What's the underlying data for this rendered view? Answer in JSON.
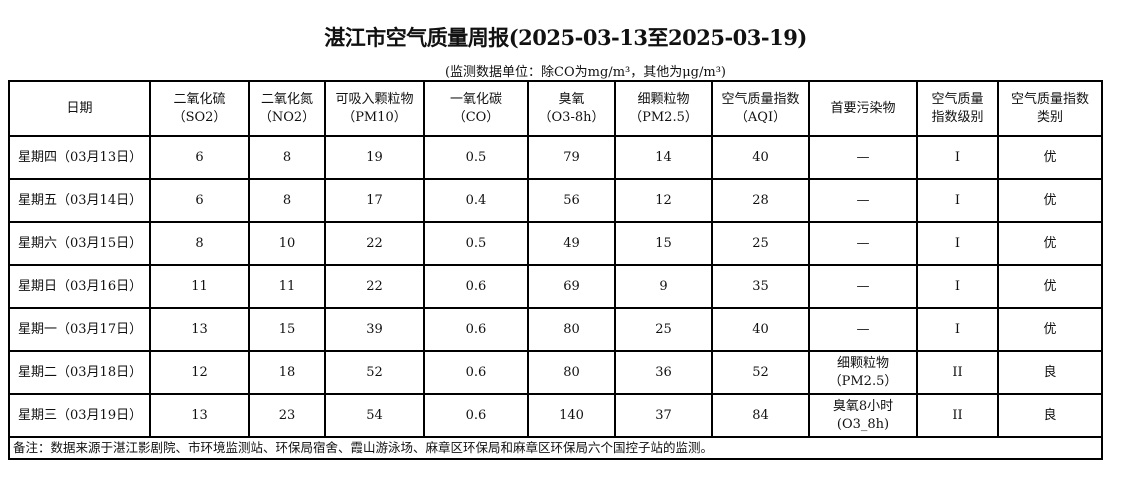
{
  "title": "湛江市空气质量周报(2025-03-13至2025-03-19)",
  "unit_note": "(监测数据单位：除CO为mg/m³，其他为μg/m³)",
  "headers": [
    {
      "l1": "日期",
      "l2": ""
    },
    {
      "l1": "二氧化硫",
      "l2": "（SO2）"
    },
    {
      "l1": "二氧化氮",
      "l2": "（NO2）"
    },
    {
      "l1": "可吸入颗粒物",
      "l2": "（PM10）"
    },
    {
      "l1": "一氧化碳",
      "l2": "（CO）"
    },
    {
      "l1": "臭氧",
      "l2": "（O3-8h）"
    },
    {
      "l1": "细颗粒物",
      "l2": "（PM2.5）"
    },
    {
      "l1": "空气质量指数",
      "l2": "（AQI）"
    },
    {
      "l1": "首要污染物",
      "l2": ""
    },
    {
      "l1": "空气质量",
      "l2": "指数级别"
    },
    {
      "l1": "空气质量指数",
      "l2": "类别"
    }
  ],
  "rows": [
    {
      "date": "星期四（03月13日）",
      "so2": "6",
      "no2": "8",
      "pm10": "19",
      "co": "0.5",
      "o3": "79",
      "pm25": "14",
      "aqi": "40",
      "p1": "—",
      "p2": "",
      "level": "I",
      "cat": "优"
    },
    {
      "date": "星期五（03月14日）",
      "so2": "6",
      "no2": "8",
      "pm10": "17",
      "co": "0.4",
      "o3": "56",
      "pm25": "12",
      "aqi": "28",
      "p1": "—",
      "p2": "",
      "level": "I",
      "cat": "优"
    },
    {
      "date": "星期六（03月15日）",
      "so2": "8",
      "no2": "10",
      "pm10": "22",
      "co": "0.5",
      "o3": "49",
      "pm25": "15",
      "aqi": "25",
      "p1": "—",
      "p2": "",
      "level": "I",
      "cat": "优"
    },
    {
      "date": "星期日（03月16日）",
      "so2": "11",
      "no2": "11",
      "pm10": "22",
      "co": "0.6",
      "o3": "69",
      "pm25": "9",
      "aqi": "35",
      "p1": "—",
      "p2": "",
      "level": "I",
      "cat": "优"
    },
    {
      "date": "星期一（03月17日）",
      "so2": "13",
      "no2": "15",
      "pm10": "39",
      "co": "0.6",
      "o3": "80",
      "pm25": "25",
      "aqi": "40",
      "p1": "—",
      "p2": "",
      "level": "I",
      "cat": "优"
    },
    {
      "date": "星期二（03月18日）",
      "so2": "12",
      "no2": "18",
      "pm10": "52",
      "co": "0.6",
      "o3": "80",
      "pm25": "36",
      "aqi": "52",
      "p1": "细颗粒物",
      "p2": "（PM2.5）",
      "level": "II",
      "cat": "良"
    },
    {
      "date": "星期三（03月19日）",
      "so2": "13",
      "no2": "23",
      "pm10": "54",
      "co": "0.6",
      "o3": "140",
      "pm25": "37",
      "aqi": "84",
      "p1": "臭氧8小时",
      "p2": "(O3_8h)",
      "level": "II",
      "cat": "良"
    }
  ],
  "footnote": "备注：数据来源于湛江影剧院、市环境监测站、环保局宿舍、霞山游泳场、麻章区环保局和麻章区环保局六个国控子站的监测。"
}
